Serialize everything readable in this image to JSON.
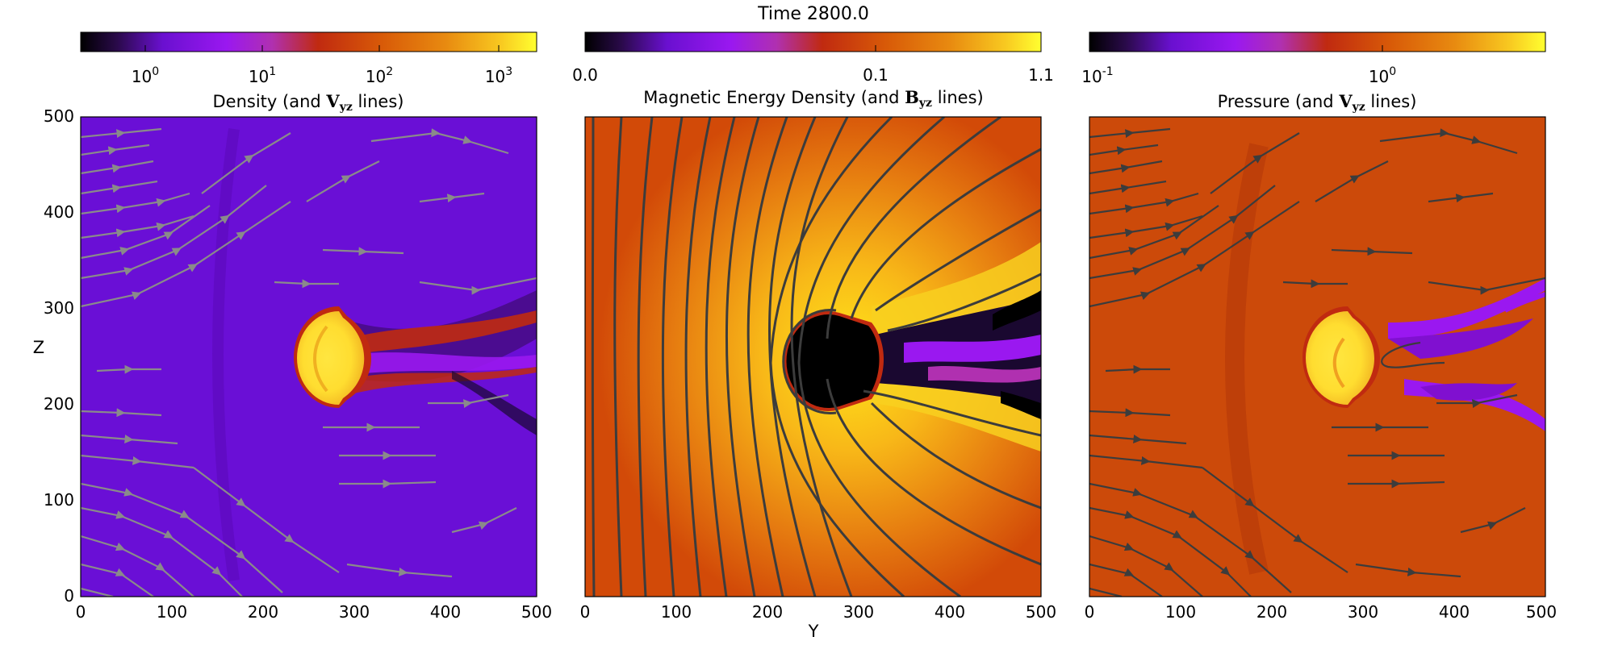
{
  "figure": {
    "title": "Time 2800.0",
    "xlabel": "Y",
    "ylabel": "Z"
  },
  "colors": {
    "background": "#ffffff",
    "density_field": "#6a0fd6",
    "magnetic_field": "#d24a08",
    "pressure_field": "#cc4a0a",
    "streamline_grey": "#8a8a8a",
    "streamline_dark": "#3c3c3c",
    "blob_core": "#ffee22",
    "void": "#000000"
  },
  "colormap": "gnuplot-like (black-purple-red-orange-yellow)",
  "panels": [
    {
      "id": "density",
      "title_main": "Density (and ",
      "title_sym": "V",
      "title_sub": "yz",
      "title_tail": " lines)",
      "colorbar": {
        "scale": "log",
        "range": [
          0.3,
          2000
        ],
        "ticks": [
          "10",
          "10",
          "10",
          "10"
        ],
        "tick_exp": [
          "0",
          "1",
          "2",
          "3"
        ],
        "tick_values": [
          1,
          10,
          100,
          1000
        ]
      },
      "x_ticks": [
        "0",
        "100",
        "200",
        "300",
        "400",
        "500"
      ],
      "y_ticks": [
        "0",
        "100",
        "200",
        "300",
        "400",
        "500"
      ]
    },
    {
      "id": "magnetic",
      "title_main": "Magnetic Energy Density (and ",
      "title_sym": "B",
      "title_sub": "yz",
      "title_tail": " lines)",
      "colorbar": {
        "scale": "nonlinear",
        "range": [
          0.0,
          1.1
        ],
        "ticks": [
          "0.0",
          "0.1",
          "1.1"
        ],
        "tick_values": [
          0.0,
          0.1,
          1.1
        ]
      },
      "x_ticks": [
        "0",
        "100",
        "200",
        "300",
        "400",
        "500"
      ]
    },
    {
      "id": "pressure",
      "title_main": "Pressure (and ",
      "title_sym": "V",
      "title_sub": "yz",
      "title_tail": " lines)",
      "colorbar": {
        "scale": "log",
        "range": [
          0.1,
          5
        ],
        "ticks": [
          "10",
          "10"
        ],
        "tick_exp": [
          "-1",
          "0"
        ],
        "tick_values": [
          0.1,
          1
        ]
      },
      "x_ticks": [
        "0",
        "100",
        "200",
        "300",
        "400",
        "500"
      ]
    }
  ],
  "axes": {
    "xlim": [
      0,
      500
    ],
    "ylim": [
      0,
      500
    ]
  }
}
